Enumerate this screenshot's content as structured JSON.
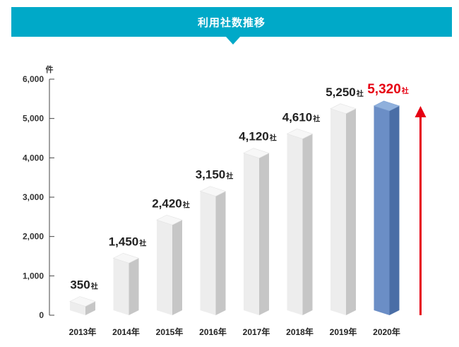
{
  "header": {
    "title": "利用社数推移"
  },
  "chart_data": {
    "type": "bar",
    "title": "利用社数推移",
    "ylabel": "件",
    "xlabel": "",
    "ylim": [
      0,
      6000
    ],
    "yticks": [
      "0",
      "1,000",
      "2,000",
      "3,000",
      "4,000",
      "5,000",
      "6,000"
    ],
    "ytick_values": [
      0,
      1000,
      2000,
      3000,
      4000,
      5000,
      6000
    ],
    "categories": [
      "2013年",
      "2014年",
      "2015年",
      "2016年",
      "2017年",
      "2018年",
      "2019年",
      "2020年"
    ],
    "values": [
      350,
      1450,
      2420,
      3150,
      4120,
      4610,
      5250,
      5320
    ],
    "value_labels": [
      "350",
      "1,450",
      "2,420",
      "3,150",
      "4,120",
      "4,610",
      "5,250",
      "5,320"
    ],
    "value_suffix": "社",
    "highlight_index": 7,
    "colors": {
      "bar_front": "#ededed",
      "bar_side": "#c6c6c6",
      "bar_top": "#f7f7f7",
      "highlight_front": "#6b8ec6",
      "highlight_side": "#4a6ea6",
      "highlight_top": "#8fb0dc",
      "highlight_label": "#e60012",
      "arrow": "#e60012",
      "header_bg": "#00a9c8"
    },
    "grid": false,
    "legend": "none"
  }
}
